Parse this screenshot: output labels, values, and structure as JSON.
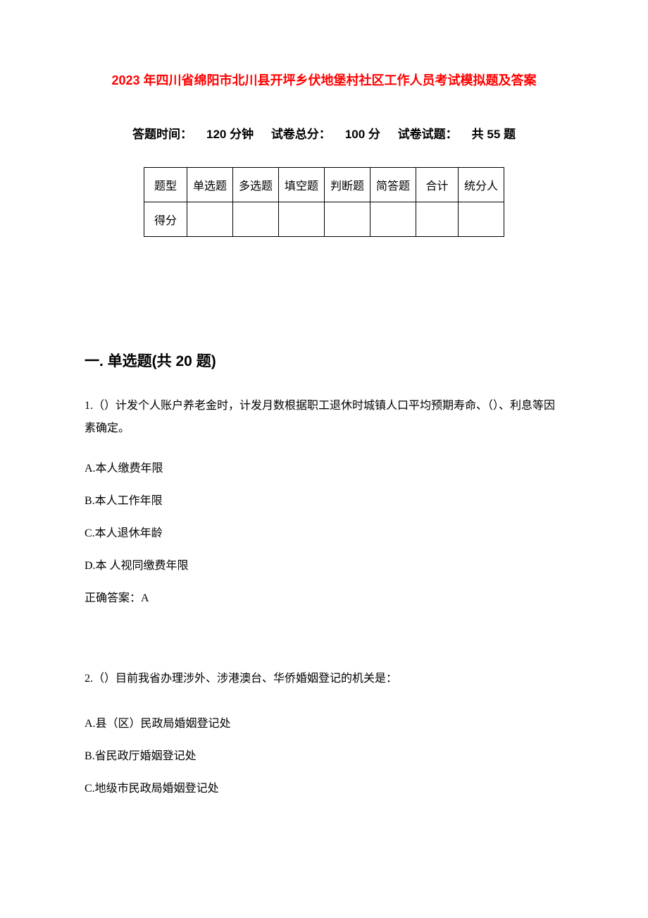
{
  "document": {
    "title": "2023 年四川省绵阳市北川县开坪乡伏地堡村社区工作人员考试模拟题及答案",
    "title_color": "#ff0000",
    "background_color": "#ffffff",
    "text_color": "#000000",
    "body_fontsize": 16,
    "title_fontsize": 18,
    "section_header_fontsize": 21,
    "font_family_heading": "SimHei",
    "font_family_body": "SimSun"
  },
  "exam_info": {
    "time_label": "答题时间：",
    "time_value": "120 分钟",
    "total_score_label": "试卷总分：",
    "total_score_value": "100 分",
    "question_count_label": "试卷试题：",
    "question_count_value": "共 55 题"
  },
  "score_table": {
    "border_color": "#000000",
    "columns": [
      "题型",
      "单选题",
      "多选题",
      "填空题",
      "判断题",
      "简答题",
      "合计",
      "统分人"
    ],
    "rows": [
      [
        "得分",
        "",
        "",
        "",
        "",
        "",
        "",
        ""
      ]
    ]
  },
  "section1": {
    "header": "一. 单选题(共 20 题)"
  },
  "q1": {
    "stem": "1.（）计发个人账户养老金时，计发月数根据职工退休时城镇人口平均预期寿命、（）、利息等因素确定。",
    "options": {
      "A": "A.本人缴费年限",
      "B": "B.本人工作年限",
      "C": "C.本人退休年龄",
      "D": "D.本  人视同缴费年限"
    },
    "answer": "正确答案：A"
  },
  "q2": {
    "stem": "2.（）目前我省办理涉外、涉港澳台、华侨婚姻登记的机关是：",
    "options": {
      "A": "A.县（区）民政局婚姻登记处",
      "B": "B.省民政厅婚姻登记处",
      "C": "C.地级市民政局婚姻登记处"
    }
  }
}
